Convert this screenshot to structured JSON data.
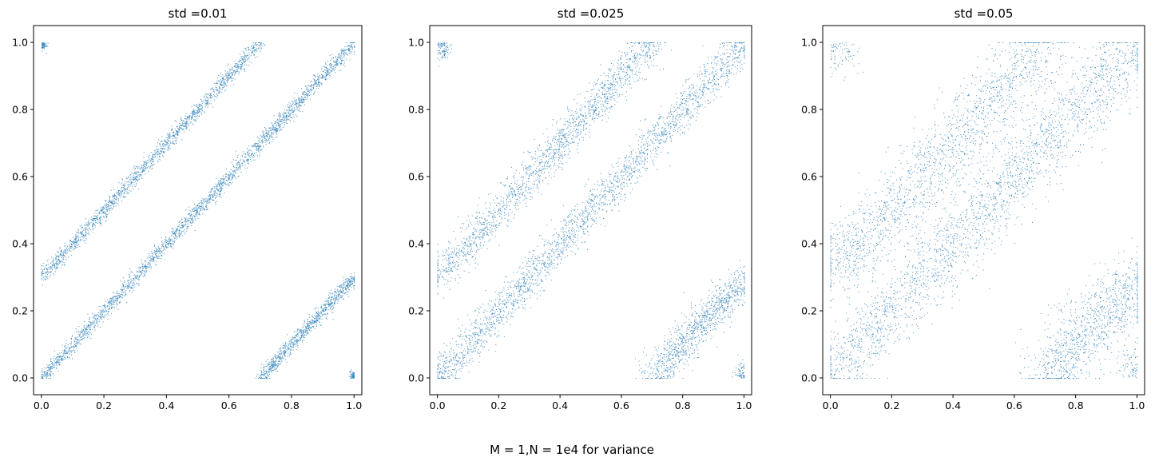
{
  "figure": {
    "suptitle": "M = 1,N = 1e4 for variance"
  },
  "chart_data": [
    {
      "type": "scatter",
      "title": "std =0.01",
      "std": 0.01,
      "xlim": [
        -0.025,
        1.025
      ],
      "ylim": [
        -0.05,
        1.05
      ],
      "xticks": [
        "0.0",
        "0.2",
        "0.4",
        "0.6",
        "0.8",
        "1.0"
      ],
      "yticks": [
        "0.0",
        "0.2",
        "0.4",
        "0.6",
        "0.8",
        "1.0"
      ],
      "color": "#1f77b4",
      "structure": "three parallel diagonal bands of slope 1 (upper band from (0,0.3) to (0.7,1.0), main band from (0,0) to (1,1), lower band from (0.7,0) to (1,0.3)) plus small clusters near (0,1) and (1,0), clipped to [0,1]"
    },
    {
      "type": "scatter",
      "title": "std =0.025",
      "std": 0.025,
      "xlim": [
        -0.025,
        1.025
      ],
      "ylim": [
        -0.05,
        1.05
      ],
      "xticks": [
        "0.0",
        "0.2",
        "0.4",
        "0.6",
        "0.8",
        "1.0"
      ],
      "yticks": [
        "0.0",
        "0.2",
        "0.4",
        "0.6",
        "0.8",
        "1.0"
      ],
      "color": "#1f77b4",
      "structure": "three parallel diagonal bands of slope 1 plus small clusters near (0,1) and (1,0), clipped to [0,1]"
    },
    {
      "type": "scatter",
      "title": "std =0.05",
      "std": 0.05,
      "xlim": [
        -0.025,
        1.025
      ],
      "ylim": [
        -0.05,
        1.05
      ],
      "xticks": [
        "0.0",
        "0.2",
        "0.4",
        "0.6",
        "0.8",
        "1.0"
      ],
      "yticks": [
        "0.0",
        "0.2",
        "0.4",
        "0.6",
        "0.8",
        "1.0"
      ],
      "color": "#1f77b4",
      "structure": "three parallel diagonal bands of slope 1 plus small clusters near (0,1) and (1,0), clipped to [0,1]"
    }
  ]
}
